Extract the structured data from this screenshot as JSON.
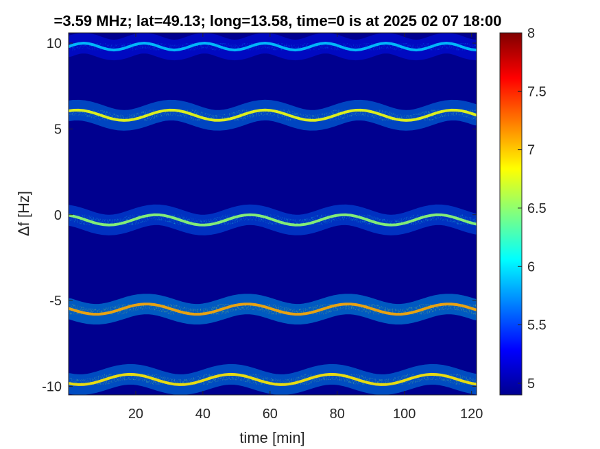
{
  "chart_data": {
    "type": "heatmap",
    "title": "=3.59 MHz;  lat=49.13; long=13.58, time=0 is at 2025 02 07 18:00",
    "xlabel": "time [min]",
    "ylabel": "Δf [Hz]",
    "xlim": [
      0,
      121.5
    ],
    "ylim": [
      -10.5,
      10.6
    ],
    "x_ticks": [
      20,
      40,
      60,
      80,
      100,
      120
    ],
    "y_ticks": [
      10,
      5,
      0,
      -5,
      -10
    ],
    "grid": false,
    "colormap": "jet",
    "colorbar": {
      "range": [
        4.9,
        8.0
      ],
      "ticks": [
        5,
        5.5,
        6,
        6.5,
        7,
        7.5,
        8
      ]
    },
    "background_color": "#00008f",
    "bands": [
      {
        "center": 9.8,
        "wobble": 0.2,
        "period_min": 18,
        "intensity": 5.9
      },
      {
        "center": 5.8,
        "wobble": 0.3,
        "period_min": 28,
        "intensity": 6.8
      },
      {
        "center": -0.3,
        "wobble": 0.3,
        "period_min": 28,
        "intensity": 6.5
      },
      {
        "center": -5.5,
        "wobble": 0.3,
        "period_min": 30,
        "intensity": 7.1
      },
      {
        "center": -9.6,
        "wobble": 0.3,
        "period_min": 30,
        "intensity": 6.9
      }
    ]
  }
}
